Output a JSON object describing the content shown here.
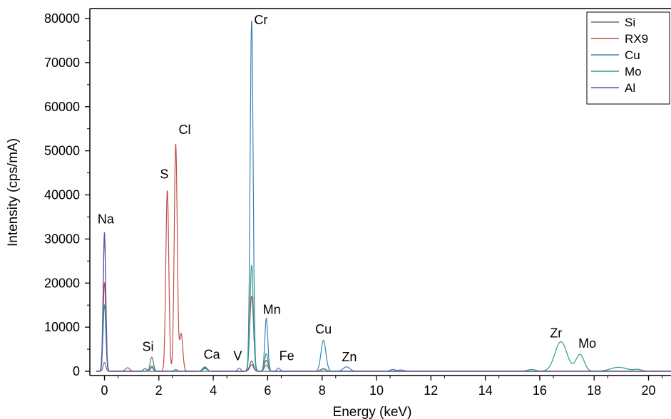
{
  "chart_data": {
    "type": "line",
    "xlabel": "Energy (keV)",
    "ylabel": "Intensity (cps/mA)",
    "xlim": [
      -0.5,
      21
    ],
    "ylim": [
      -1200,
      81000
    ],
    "xticks": [
      0,
      2,
      4,
      6,
      8,
      10,
      12,
      14,
      16,
      18,
      20
    ],
    "yticks": [
      0,
      10000,
      20000,
      30000,
      40000,
      50000,
      60000,
      70000,
      80000
    ],
    "legend_position": "top-right",
    "series": [
      {
        "name": "Si",
        "color": "#6b6b6b",
        "peaks": [
          {
            "x": 0.0,
            "y": 2000,
            "w": 0.05
          },
          {
            "x": 1.74,
            "y": 3200,
            "w": 0.06
          },
          {
            "x": 3.7,
            "y": 600,
            "w": 0.08
          },
          {
            "x": 5.41,
            "y": 2300,
            "w": 0.07
          },
          {
            "x": 5.95,
            "y": 1400,
            "w": 0.07
          }
        ]
      },
      {
        "name": "RX9",
        "color": "#c0504d",
        "peaks": [
          {
            "x": 0.0,
            "y": 20000,
            "w": 0.05
          },
          {
            "x": 0.85,
            "y": 800,
            "w": 0.08
          },
          {
            "x": 1.74,
            "y": 800,
            "w": 0.06
          },
          {
            "x": 2.31,
            "y": 41000,
            "w": 0.055
          },
          {
            "x": 2.62,
            "y": 51500,
            "w": 0.055
          },
          {
            "x": 2.82,
            "y": 8500,
            "w": 0.06
          },
          {
            "x": 3.7,
            "y": 900,
            "w": 0.08
          },
          {
            "x": 5.41,
            "y": 17000,
            "w": 0.07
          },
          {
            "x": 5.95,
            "y": 2500,
            "w": 0.07
          },
          {
            "x": 8.05,
            "y": 500,
            "w": 0.1
          }
        ]
      },
      {
        "name": "Cu",
        "color": "#3c83b6",
        "peaks": [
          {
            "x": 0.0,
            "y": 30000,
            "w": 0.05
          },
          {
            "x": 1.74,
            "y": 1200,
            "w": 0.06
          },
          {
            "x": 3.69,
            "y": 1000,
            "w": 0.08
          },
          {
            "x": 4.95,
            "y": 700,
            "w": 0.06
          },
          {
            "x": 5.41,
            "y": 79500,
            "w": 0.055
          },
          {
            "x": 5.95,
            "y": 12000,
            "w": 0.055
          },
          {
            "x": 6.4,
            "y": 700,
            "w": 0.06
          },
          {
            "x": 8.05,
            "y": 7000,
            "w": 0.09
          },
          {
            "x": 8.9,
            "y": 1000,
            "w": 0.12
          },
          {
            "x": 10.6,
            "y": 400,
            "w": 0.1
          },
          {
            "x": 10.9,
            "y": 300,
            "w": 0.1
          }
        ]
      },
      {
        "name": "Mo",
        "color": "#2e9e7a",
        "peaks": [
          {
            "x": 0.0,
            "y": 15000,
            "w": 0.05
          },
          {
            "x": 1.74,
            "y": 900,
            "w": 0.06
          },
          {
            "x": 2.62,
            "y": 400,
            "w": 0.06
          },
          {
            "x": 3.69,
            "y": 800,
            "w": 0.08
          },
          {
            "x": 5.41,
            "y": 24000,
            "w": 0.06
          },
          {
            "x": 5.95,
            "y": 4000,
            "w": 0.06
          },
          {
            "x": 8.05,
            "y": 600,
            "w": 0.1
          },
          {
            "x": 15.7,
            "y": 400,
            "w": 0.15
          },
          {
            "x": 16.78,
            "y": 6700,
            "w": 0.22
          },
          {
            "x": 17.48,
            "y": 3800,
            "w": 0.15
          },
          {
            "x": 18.9,
            "y": 900,
            "w": 0.3
          },
          {
            "x": 19.6,
            "y": 400,
            "w": 0.15
          }
        ]
      },
      {
        "name": "Al",
        "color": "#6a4fa3",
        "peaks": [
          {
            "x": 0.0,
            "y": 31500,
            "w": 0.045
          },
          {
            "x": 1.49,
            "y": 600,
            "w": 0.06
          },
          {
            "x": 5.41,
            "y": 1500,
            "w": 0.07
          }
        ]
      }
    ],
    "annotations": [
      {
        "text": "Na",
        "x": 0.05,
        "y": 33500
      },
      {
        "text": "Si",
        "x": 1.6,
        "y": 4600
      },
      {
        "text": "S",
        "x": 2.2,
        "y": 43700
      },
      {
        "text": "Cl",
        "x": 2.95,
        "y": 53800
      },
      {
        "text": "Ca",
        "x": 3.95,
        "y": 2800
      },
      {
        "text": "V",
        "x": 4.9,
        "y": 2500
      },
      {
        "text": "Cr",
        "x": 5.75,
        "y": 78700
      },
      {
        "text": "Mn",
        "x": 6.15,
        "y": 13000
      },
      {
        "text": "Fe",
        "x": 6.7,
        "y": 2500
      },
      {
        "text": "Cu",
        "x": 8.05,
        "y": 8600
      },
      {
        "text": "Zn",
        "x": 9.0,
        "y": 2300
      },
      {
        "text": "Zr",
        "x": 16.6,
        "y": 7700
      },
      {
        "text": "Mo",
        "x": 17.75,
        "y": 5300
      }
    ]
  }
}
